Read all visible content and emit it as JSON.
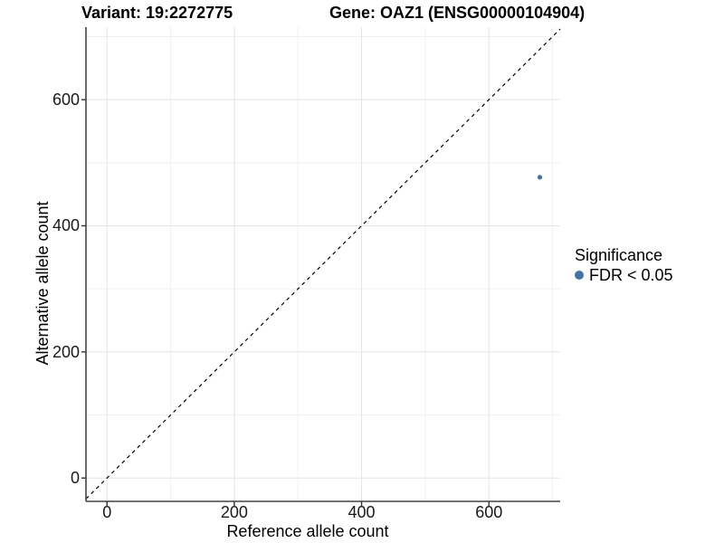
{
  "chart_data": {
    "type": "scatter",
    "title_left": "Variant: 19:2272775",
    "title_right": "Gene: OAZ1 (ENSG00000104904)",
    "xlabel": "Reference allele count",
    "ylabel": "Alternative allele count",
    "xlim": [
      -33,
      712
    ],
    "ylim": [
      -37,
      715
    ],
    "x_major_ticks": [
      0,
      200,
      400,
      600
    ],
    "y_major_ticks": [
      0,
      200,
      400,
      600
    ],
    "x_minor_gridlines": [
      100,
      300,
      500,
      700
    ],
    "y_minor_gridlines": [
      100,
      300,
      500,
      700
    ],
    "grid": "major and minor gridlines, light gray on white panel",
    "identity_line": {
      "equation": "y = x",
      "style": "dashed",
      "color": "#000000"
    },
    "series": [
      {
        "name": "FDR < 0.05",
        "color": "#4373a3",
        "points": [
          {
            "x": 680,
            "y": 477
          }
        ]
      }
    ],
    "legend": {
      "position": "right",
      "title": "Significance",
      "items": [
        {
          "label": "FDR < 0.05",
          "color": "#4373a3",
          "marker": "circle"
        }
      ]
    }
  },
  "colors": {
    "point": "#4373a3",
    "grid_major": "#e4e4e4",
    "grid_minor": "#f1f1f1",
    "axis_line": "#444444",
    "tick_mark": "#333333",
    "dashed_line": "#000000"
  }
}
